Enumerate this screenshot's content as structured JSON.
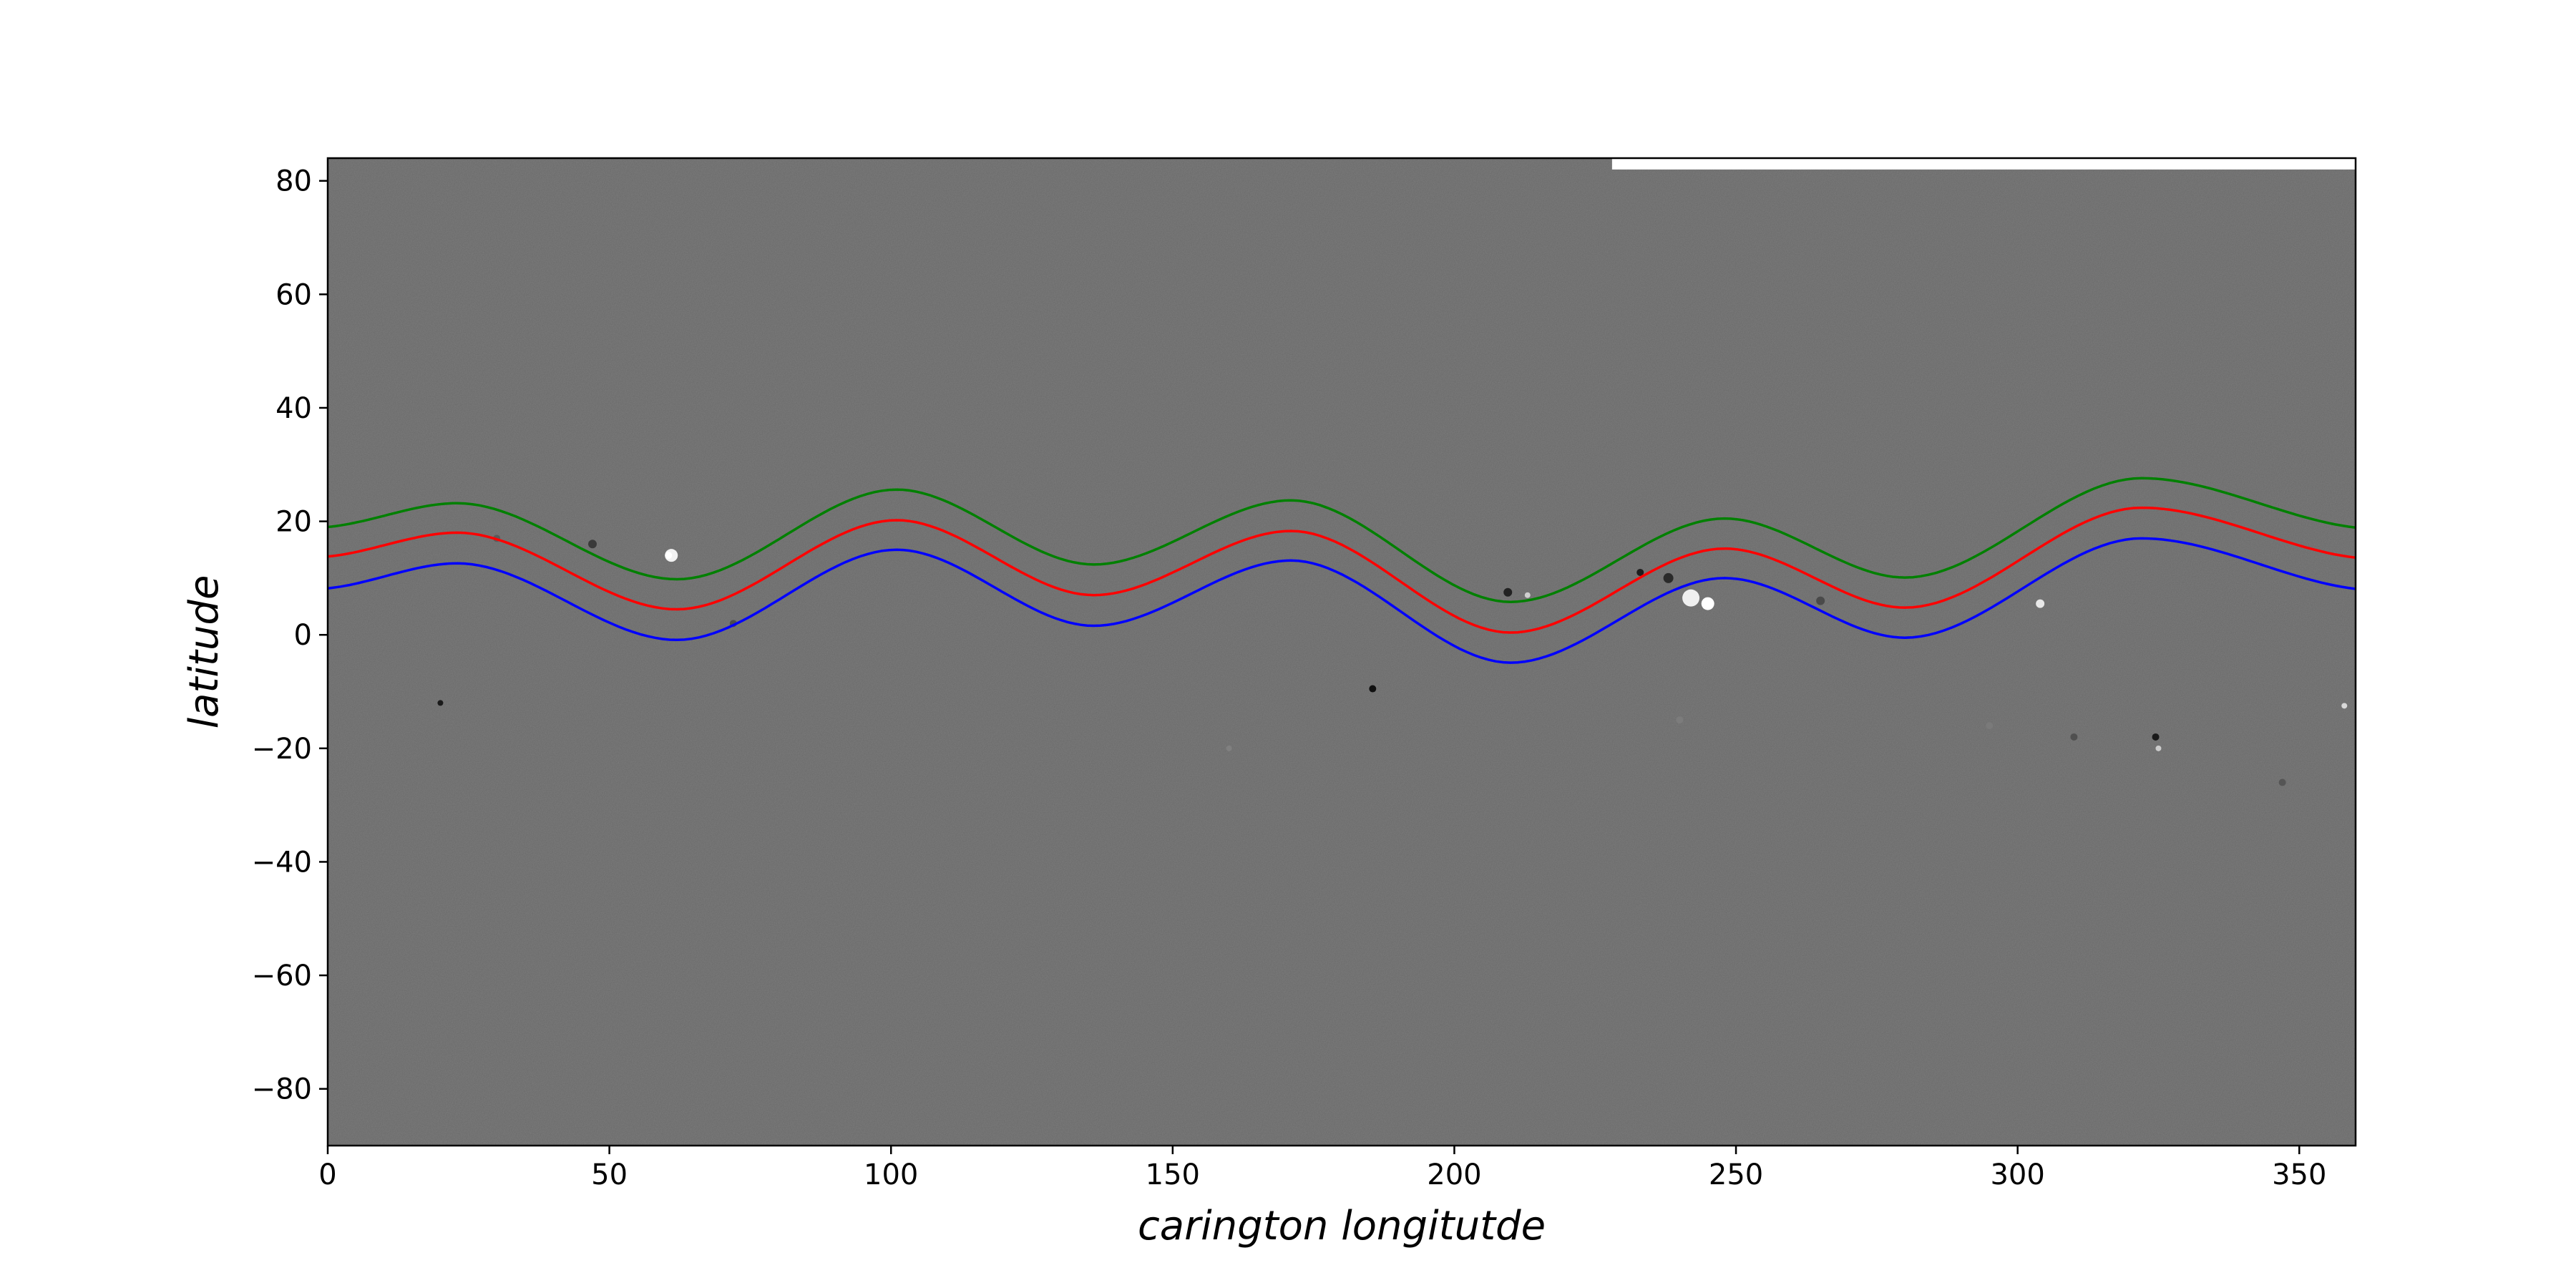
{
  "colors": {
    "background": "#ffffff",
    "map_gray": "#676767",
    "axis": "#000000",
    "strip": "#ffffff"
  },
  "chart_data": {
    "type": "line",
    "title": "",
    "xlabel": "carington longitutde",
    "ylabel": "latitude",
    "xlim": [
      0,
      360
    ],
    "ylim": [
      -90,
      84
    ],
    "grid": false,
    "legend": "none",
    "background": "grayscale synoptic magnetogram",
    "x_ticks": [
      0,
      50,
      100,
      150,
      200,
      250,
      300,
      350
    ],
    "x_tick_labels": [
      "0",
      "50",
      "100",
      "150",
      "200",
      "250",
      "300",
      "350"
    ],
    "y_ticks": [
      80,
      60,
      40,
      20,
      0,
      -20,
      -40,
      -60,
      -80
    ],
    "y_tick_labels": [
      "80",
      "60",
      "40",
      "20",
      "0",
      "−20",
      "−40",
      "−60",
      "−80"
    ],
    "data_gap": {
      "x_range": [
        228,
        360
      ],
      "y_range": [
        82,
        84
      ],
      "color": "#ffffff"
    },
    "series": [
      {
        "color": "#008000",
        "x": [
          0,
          23,
          62,
          101,
          136,
          171,
          210,
          248,
          280,
          322,
          360
        ],
        "y": [
          19,
          23.2,
          9.8,
          25.6,
          12.4,
          23.7,
          5.8,
          20.5,
          10.1,
          27.6,
          18.9
        ]
      },
      {
        "color": "#ff0000",
        "x": [
          0,
          23,
          62,
          101,
          136,
          171,
          210,
          248,
          280,
          322,
          360
        ],
        "y": [
          13.8,
          18,
          4.5,
          20.2,
          7,
          18.3,
          0.4,
          15.2,
          4.8,
          22.4,
          13.6
        ]
      },
      {
        "color": "#0000ff",
        "x": [
          0,
          23,
          62,
          101,
          136,
          171,
          210,
          248,
          280,
          322,
          360
        ],
        "y": [
          8.2,
          12.6,
          -0.9,
          15,
          1.6,
          13.1,
          -4.9,
          10,
          -0.5,
          17,
          8.1
        ]
      }
    ]
  }
}
